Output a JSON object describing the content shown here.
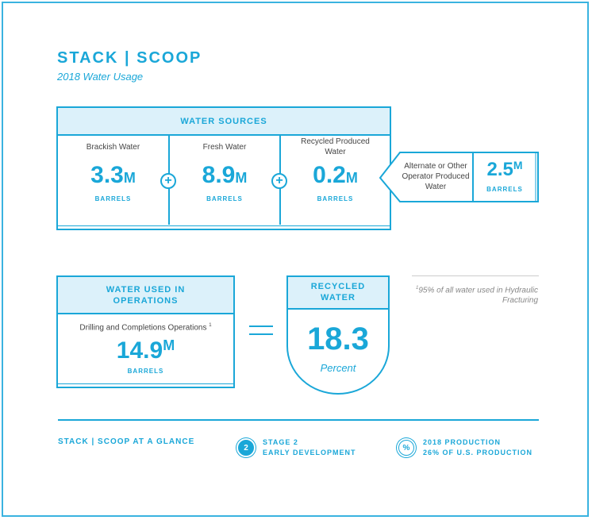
{
  "header": {
    "brand": "STACK | SCOOP",
    "subtitle": "2018 Water Usage"
  },
  "water_sources": {
    "title": "WATER SOURCES",
    "items": [
      {
        "label": "Brackish Water",
        "value": "3.3",
        "unit": "M",
        "unit_label": "BARRELS"
      },
      {
        "label": "Fresh Water",
        "value": "8.9",
        "unit": "M",
        "unit_label": "BARRELS"
      },
      {
        "label": "Recycled Produced Water",
        "value": "0.2",
        "unit": "M",
        "unit_label": "BARRELS"
      }
    ],
    "plus_symbol": "+",
    "alternate": {
      "label": "Alternate or Other Operator Produced Water",
      "value": "2.5",
      "unit": "M",
      "unit_label": "BARRELS"
    }
  },
  "water_used": {
    "title": "WATER USED IN OPERATIONS",
    "label": "Drilling and Completions Operations",
    "footnote_mark": "1",
    "value": "14.9",
    "unit": "M",
    "unit_label": "BARRELS"
  },
  "recycled": {
    "title": "RECYCLED WATER",
    "value": "18.3",
    "unit_label": "Percent"
  },
  "footnote": {
    "mark": "1",
    "text": "95% of all water used in Hydraulic Fracturing"
  },
  "glance": {
    "title": "STACK | SCOOP AT A GLANCE",
    "stage": {
      "badge": "2",
      "line1": "STAGE 2",
      "line2": "EARLY DEVELOPMENT"
    },
    "production": {
      "badge": "%",
      "line1": "2018 PRODUCTION",
      "line2": "26% OF U.S. PRODUCTION"
    }
  },
  "colors": {
    "accent": "#1aa7d8",
    "header_fill": "#dcf1fa",
    "body_text": "#444444",
    "footnote_text": "#888888"
  }
}
